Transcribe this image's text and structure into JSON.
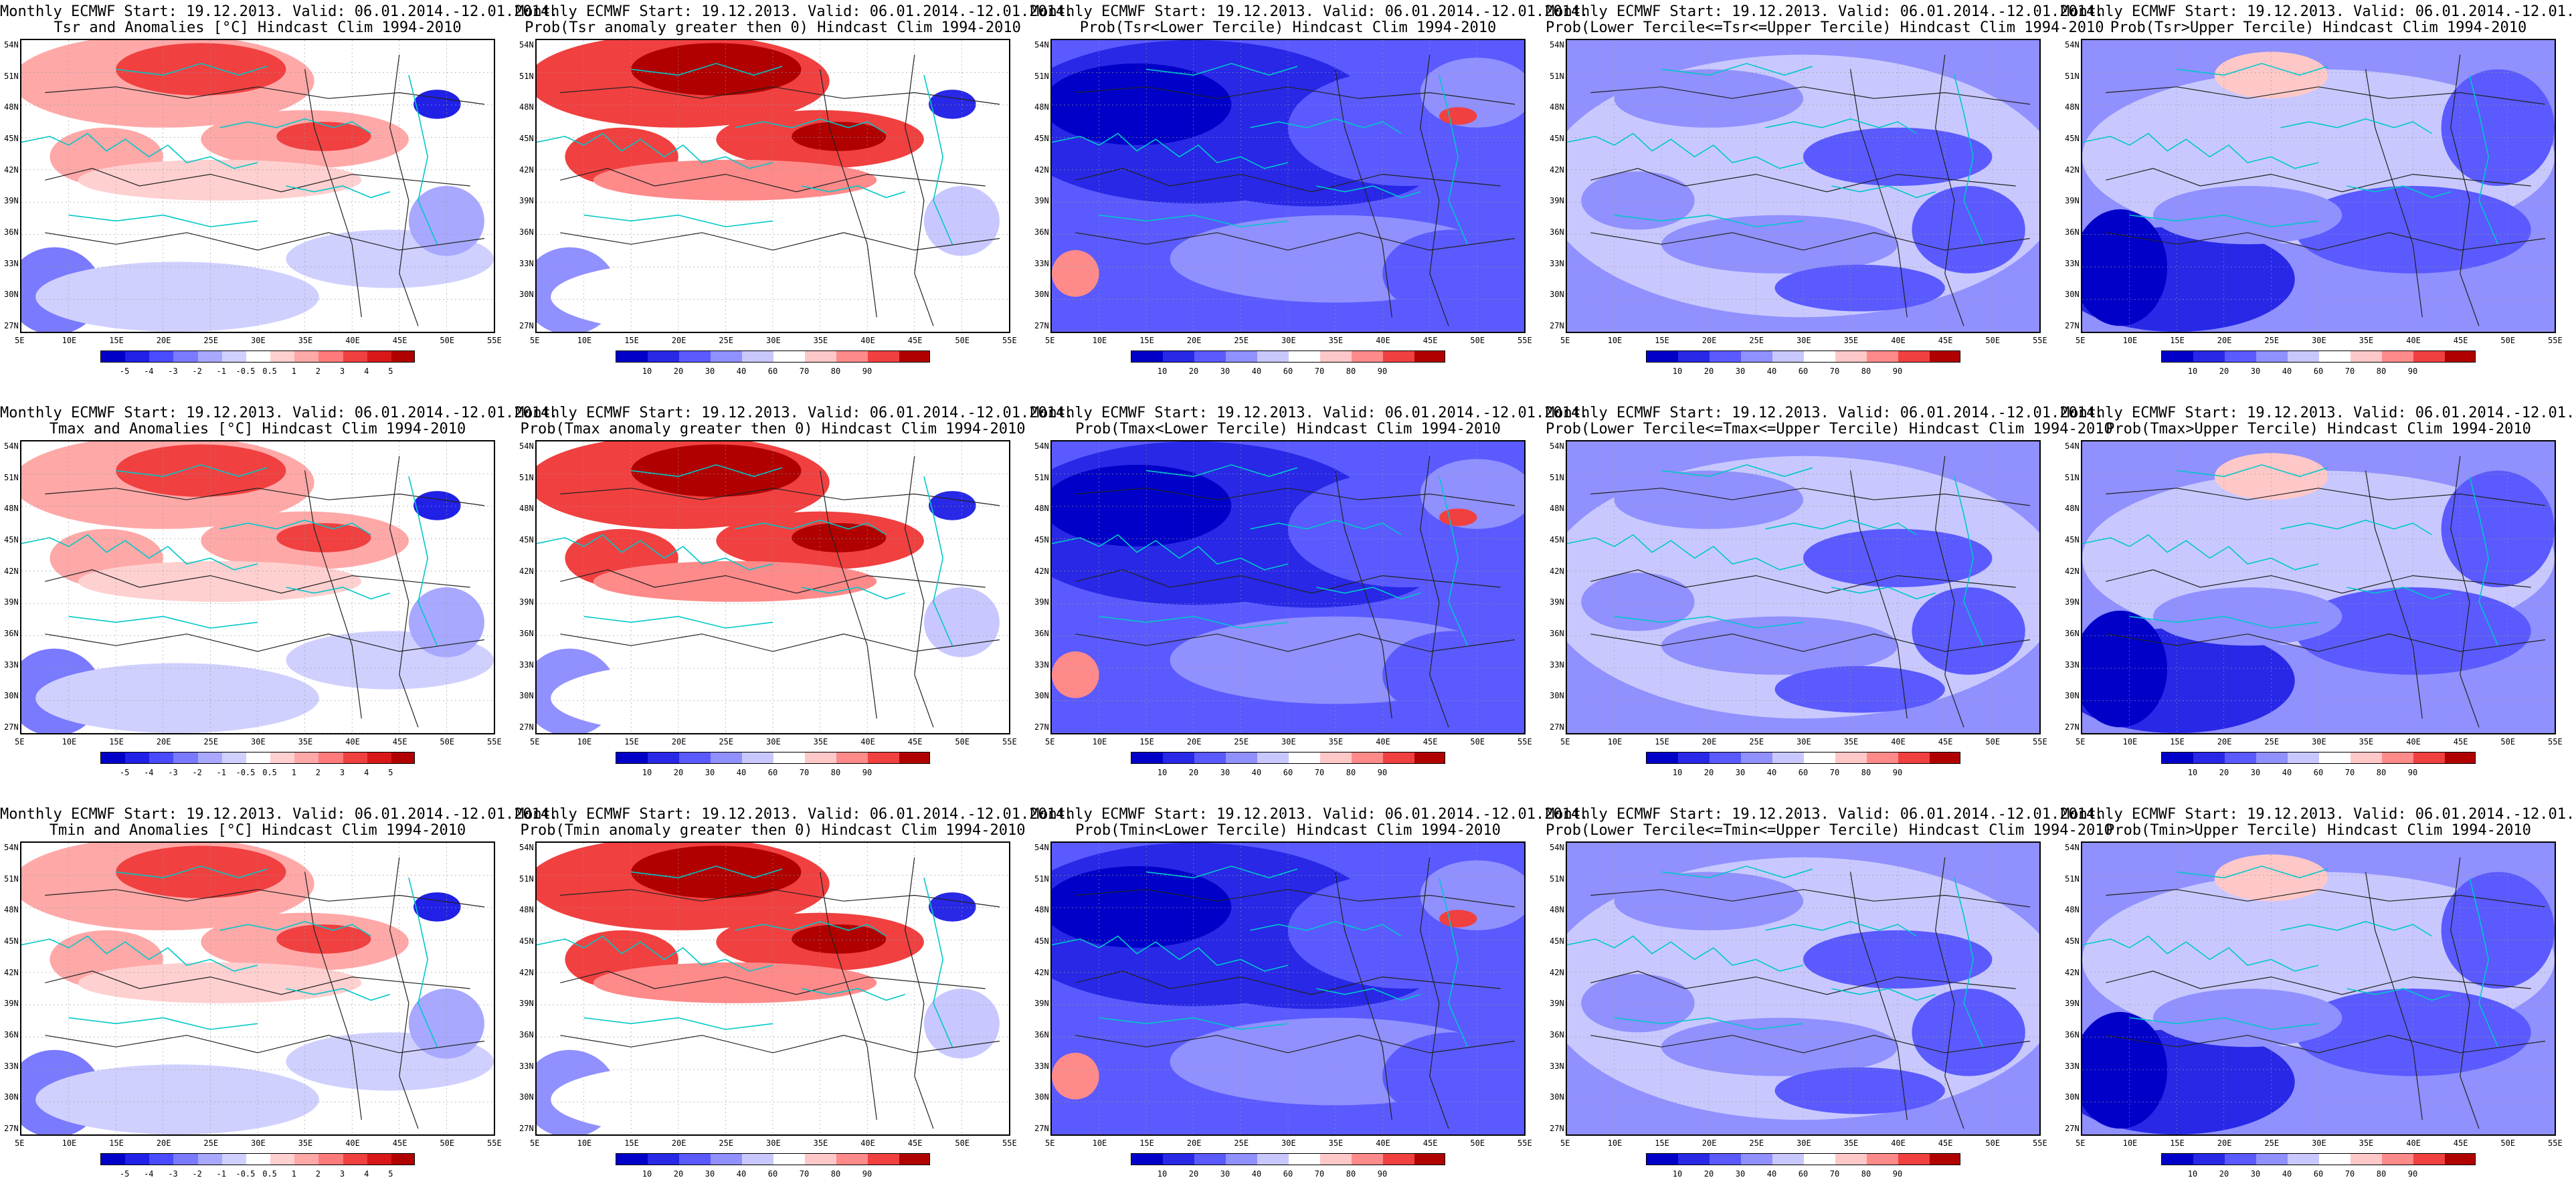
{
  "header_line1": "Monthly ECMWF Start: 19.12.2013. Valid: 06.01.2014.-12.01.2014.",
  "lat_labels": [
    "54N",
    "51N",
    "48N",
    "45N",
    "42N",
    "39N",
    "36N",
    "33N",
    "30N",
    "27N"
  ],
  "lon_labels": [
    "5E",
    "10E",
    "15E",
    "20E",
    "25E",
    "30E",
    "35E",
    "40E",
    "45E",
    "50E",
    "55E"
  ],
  "anomaly_scale": [
    "-5",
    "-4",
    "-3",
    "-2",
    "-1",
    "-0.5",
    "0.5",
    "1",
    "2",
    "3",
    "4",
    "5"
  ],
  "prob_scale": [
    "10",
    "20",
    "30",
    "40",
    "60",
    "70",
    "80",
    "90"
  ],
  "colors": {
    "anomaly": [
      "#0000c8",
      "#2020e6",
      "#4a4aff",
      "#7a7aff",
      "#a8a8ff",
      "#d0d0ff",
      "#ffffff",
      "#ffd0d0",
      "#ffa8a8",
      "#ff7a7a",
      "#f04040",
      "#d81818",
      "#b00000"
    ],
    "prob": [
      "#0000c8",
      "#2828e6",
      "#5a5aff",
      "#9090ff",
      "#c8c8ff",
      "#ffffff",
      "#ffc8c8",
      "#ff8a8a",
      "#f04040",
      "#b00000"
    ],
    "coast": "#00c8c8"
  },
  "panels": [
    {
      "title": "Tsr and Anomalies [°C] Hindcast Clim 1994-2010",
      "kind": "anomaly",
      "pattern": "warm"
    },
    {
      "title": "Prob(Tsr anomaly greater then 0) Hindcast Clim 1994-2010",
      "kind": "prob",
      "pattern": "warm"
    },
    {
      "title": "Prob(Tsr<Lower Tercile) Hindcast Clim 1994-2010",
      "kind": "prob",
      "pattern": "cold"
    },
    {
      "title": "Prob(Lower Tercile<=Tsr<=Upper Tercile) Hindcast Clim 1994-2010",
      "kind": "prob",
      "pattern": "mid"
    },
    {
      "title": "Prob(Tsr>Upper Tercile) Hindcast Clim 1994-2010",
      "kind": "prob",
      "pattern": "upper"
    },
    {
      "title": "Tmax and Anomalies [°C] Hindcast Clim 1994-2010",
      "kind": "anomaly",
      "pattern": "warm"
    },
    {
      "title": "Prob(Tmax anomaly greater then 0) Hindcast Clim 1994-2010",
      "kind": "prob",
      "pattern": "warm"
    },
    {
      "title": "Prob(Tmax<Lower Tercile) Hindcast Clim 1994-2010",
      "kind": "prob",
      "pattern": "cold"
    },
    {
      "title": "Prob(Lower Tercile<=Tmax<=Upper Tercile) Hindcast Clim 1994-2010",
      "kind": "prob",
      "pattern": "mid"
    },
    {
      "title": "Prob(Tmax>Upper Tercile) Hindcast Clim 1994-2010",
      "kind": "prob",
      "pattern": "upper"
    },
    {
      "title": "Tmin and Anomalies [°C] Hindcast Clim 1994-2010",
      "kind": "anomaly",
      "pattern": "warm"
    },
    {
      "title": "Prob(Tmin anomaly greater then 0) Hindcast Clim 1994-2010",
      "kind": "prob",
      "pattern": "warm"
    },
    {
      "title": "Prob(Tmin<Lower Tercile) Hindcast Clim 1994-2010",
      "kind": "prob",
      "pattern": "cold"
    },
    {
      "title": "Prob(Lower Tercile<=Tmin<=Upper Tercile) Hindcast Clim 1994-2010",
      "kind": "prob",
      "pattern": "mid"
    },
    {
      "title": "Prob(Tmin>Upper Tercile) Hindcast Clim 1994-2010",
      "kind": "prob",
      "pattern": "upper"
    }
  ]
}
